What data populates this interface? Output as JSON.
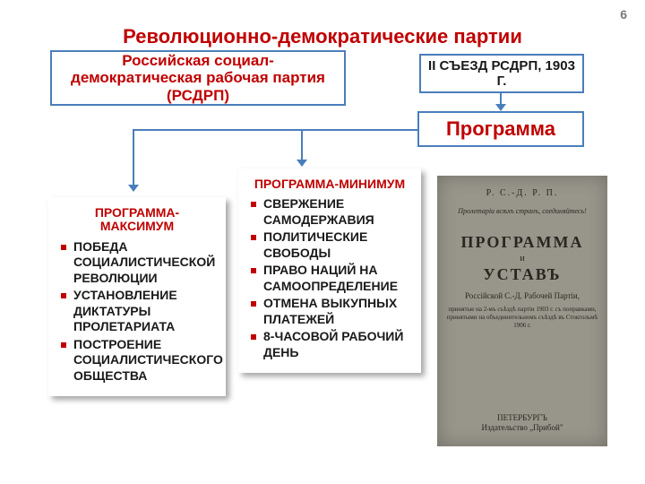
{
  "page_number": "6",
  "title": "Революционно-демократические партии",
  "colors": {
    "accent_red": "#c00000",
    "box_border": "#4a7ebb",
    "text_dark": "#1a1a1a",
    "page_num": "#7a7a7a",
    "book_bg": "#9a9684",
    "book_text": "#2a261c",
    "shadow": "rgba(0,0,0,0.35)"
  },
  "boxes": {
    "rsdrp": "Российская социал-демократическая рабочая партия (РСДРП)",
    "congress": "II СЪЕЗД РСДРП, 1903 Г.",
    "program": "Программа"
  },
  "program_max": {
    "title": "ПРОГРАММА-МАКСИМУМ",
    "items": [
      "ПОБЕДА СОЦИАЛИСТИЧЕСКОЙ РЕВОЛЮЦИИ",
      "УСТАНОВЛЕНИЕ ДИКТАТУРЫ ПРОЛЕТАРИАТА",
      "ПОСТРОЕНИЕ СОЦИАЛИСТИЧЕСКОГО ОБЩЕСТВА"
    ]
  },
  "program_min": {
    "title": "ПРОГРАММА-МИНИМУМ",
    "items": [
      "СВЕРЖЕНИЕ САМОДЕРЖАВИЯ",
      "ПОЛИТИЧЕСКИЕ СВОБОДЫ",
      "ПРАВО НАЦИЙ НА САМООПРЕДЕЛЕНИЕ",
      "ОТМЕНА ВЫКУПНЫХ ПЛАТЕЖЕЙ",
      "8-ЧАСОВОЙ РАБОЧИЙ ДЕНЬ"
    ]
  },
  "book": {
    "header": "Р. С.-Д. Р. П.",
    "motto": "Пролетаріи всѣхъ странъ, соединяйтесь!",
    "title1": "ПРОГРАММА",
    "conj": "и",
    "title2": "УСТАВЪ",
    "subtitle": "Россійской С.-Д. Рабочей Партіи,",
    "adopted": "принятые на 2-мъ съѣздѣ партіи 1903 г. съ поправками, принятыми на объединительномъ съѣздѣ въ Стокгольмѣ 1906 г.",
    "city": "ПЕТЕРБУРГЪ",
    "publisher": "Издательство „Прибой\""
  }
}
